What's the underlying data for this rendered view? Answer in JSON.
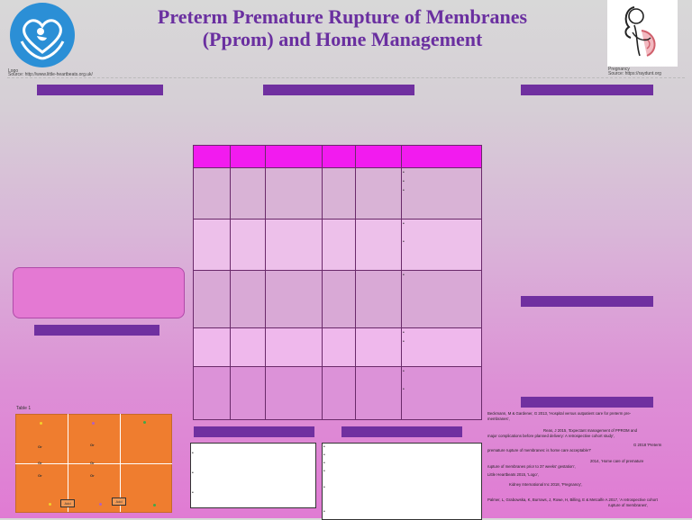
{
  "header": {
    "title_line1": "Preterm Premature Rupture of Membranes",
    "title_line2": "(Pprom) and Home Management",
    "logo_caption": "Logo",
    "logo_source": "Source: http://www.little-heartbeats.org.uk/",
    "pregnancy_caption": "Pregnancy",
    "pregnancy_source": "Source: https://raydunt.org"
  },
  "left": {
    "table_label": "Table 1",
    "grid": {
      "or_labels": [
        "Or",
        "Or",
        "Or",
        "Or",
        "Or",
        "Or"
      ],
      "add_labels": [
        "Add",
        "Add"
      ]
    }
  },
  "references": [
    "Beckmann, M & Gardener, G 2013, 'Hospital versus outpatient care for preterm pre-",
    "membranes',",
    "Reas, J 2015, 'Expectant management of PPROM and",
    "major complications before planned delivery: A retrospective cohort study',",
    "G 2018 'Preterm",
    "premature rupture of membranes: is home care acceptable?'",
    "2014, 'Home care of premature",
    "rupture of membranes prior to 37 weeks' gestation',",
    "Little Heartbeats 2015, 'Logo',",
    "Kidney International Inc 2018, 'Pregnancy',",
    "Palmer, L, Grabowska, K, Burrows, J, Rowe, H, Billing, E & Metcalfe A 2017, 'A retrospective cohort",
    "rupture of membranes',"
  ],
  "colors": {
    "title": "#6a2fa0",
    "section_bar": "#7030a0",
    "table_header": "#f21bef",
    "grid_fill": "#ef7d2f"
  }
}
